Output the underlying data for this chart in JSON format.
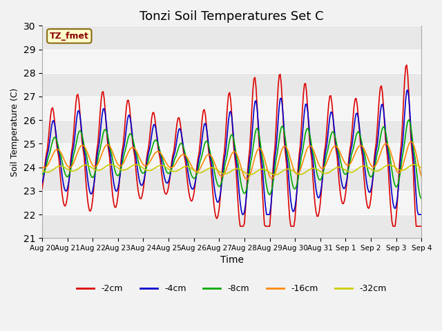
{
  "title": "Tonzi Soil Temperatures Set C",
  "xlabel": "Time",
  "ylabel": "Soil Temperature (C)",
  "ylim": [
    21.0,
    30.0
  ],
  "yticks": [
    21.0,
    22.0,
    23.0,
    24.0,
    25.0,
    26.0,
    27.0,
    28.0,
    29.0,
    30.0
  ],
  "xtick_labels": [
    "Aug 20",
    "Aug 21",
    "Aug 22",
    "Aug 23",
    "Aug 24",
    "Aug 25",
    "Aug 26",
    "Aug 27",
    "Aug 28",
    "Aug 29",
    "Aug 30",
    "Aug 31",
    "Sep 1",
    "Sep 2",
    "Sep 3",
    "Sep 4"
  ],
  "series_colors": {
    "-2cm": "#dd0000",
    "-4cm": "#0000cc",
    "-8cm": "#00aa00",
    "-16cm": "#ff8800",
    "-32cm": "#cccc00"
  },
  "annotation_text": "TZ_fmet",
  "plot_bg_color": "#e8e8e8",
  "fig_bg_color": "#f2f2f2",
  "title_fontsize": 13,
  "linewidth": 1.2
}
